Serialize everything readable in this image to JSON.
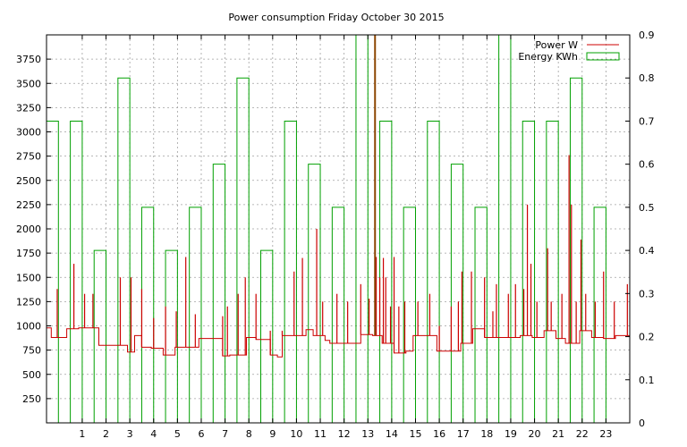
{
  "chart_data": {
    "type": "line",
    "title": "Power consumption Friday October 30 2015",
    "xlabel": "",
    "ylabel": "",
    "grid": true,
    "legend_position": "top-right",
    "x_axis": {
      "range": [
        -0.5,
        24
      ],
      "ticks": [
        "1",
        "2",
        "3",
        "4",
        "5",
        "6",
        "7",
        "8",
        "9",
        "10",
        "11",
        "12",
        "13",
        "14",
        "15",
        "16",
        "17",
        "18",
        "19",
        "20",
        "21",
        "22",
        "23"
      ]
    },
    "y_left": {
      "range": [
        0,
        4000
      ],
      "ticks": [
        "250",
        "500",
        "750",
        "1000",
        "1250",
        "1500",
        "1750",
        "2000",
        "2250",
        "2500",
        "2750",
        "3000",
        "3250",
        "3500",
        "3750"
      ]
    },
    "y_right": {
      "range": [
        0,
        0.9
      ],
      "ticks": [
        "0",
        "0.1",
        "0.2",
        "0.3",
        "0.4",
        "0.5",
        "0.6",
        "0.7",
        "0.8",
        "0.9"
      ]
    },
    "series": [
      {
        "name": "Power W",
        "axis": "left",
        "color": "#cc0000",
        "style": "line",
        "base_levels": [
          [
            -0.5,
            980
          ],
          [
            -0.3,
            880
          ],
          [
            0.2,
            880
          ],
          [
            0.35,
            970
          ],
          [
            0.85,
            980
          ],
          [
            1.3,
            980
          ],
          [
            1.7,
            800
          ],
          [
            2.1,
            800
          ],
          [
            2.5,
            800
          ],
          [
            2.9,
            730
          ],
          [
            3.2,
            900
          ],
          [
            3.5,
            780
          ],
          [
            3.9,
            770
          ],
          [
            4.4,
            700
          ],
          [
            4.9,
            780
          ],
          [
            5.4,
            780
          ],
          [
            5.9,
            870
          ],
          [
            6.4,
            870
          ],
          [
            6.9,
            690
          ],
          [
            7.2,
            700
          ],
          [
            7.4,
            700
          ],
          [
            7.9,
            880
          ],
          [
            8.3,
            860
          ],
          [
            8.9,
            700
          ],
          [
            9.2,
            680
          ],
          [
            9.4,
            900
          ],
          [
            9.9,
            900
          ],
          [
            10.4,
            960
          ],
          [
            10.7,
            900
          ],
          [
            11.2,
            850
          ],
          [
            11.4,
            820
          ],
          [
            11.9,
            820
          ],
          [
            12.4,
            820
          ],
          [
            12.7,
            910
          ],
          [
            13.2,
            900
          ],
          [
            13.6,
            820
          ],
          [
            14.1,
            720
          ],
          [
            14.6,
            740
          ],
          [
            14.9,
            900
          ],
          [
            15.4,
            900
          ],
          [
            15.9,
            740
          ],
          [
            16.4,
            740
          ],
          [
            16.9,
            820
          ],
          [
            17.4,
            970
          ],
          [
            17.9,
            880
          ],
          [
            18.3,
            880
          ],
          [
            18.9,
            880
          ],
          [
            19.4,
            900
          ],
          [
            19.9,
            880
          ],
          [
            20.4,
            950
          ],
          [
            20.9,
            870
          ],
          [
            21.3,
            820
          ],
          [
            21.9,
            950
          ],
          [
            22.4,
            880
          ],
          [
            22.9,
            870
          ],
          [
            23.4,
            900
          ],
          [
            24.0,
            900
          ]
        ],
        "spikes": [
          [
            -0.05,
            1380
          ],
          [
            0.65,
            1640
          ],
          [
            1.1,
            1330
          ],
          [
            1.45,
            1330
          ],
          [
            2.6,
            1500
          ],
          [
            3.05,
            1500
          ],
          [
            3.5,
            1380
          ],
          [
            4.0,
            1080
          ],
          [
            4.5,
            1200
          ],
          [
            4.95,
            1150
          ],
          [
            5.35,
            1710
          ],
          [
            5.75,
            1120
          ],
          [
            6.9,
            1100
          ],
          [
            7.1,
            1200
          ],
          [
            7.55,
            1330
          ],
          [
            7.85,
            1500
          ],
          [
            8.3,
            1330
          ],
          [
            8.9,
            950
          ],
          [
            9.4,
            950
          ],
          [
            9.9,
            1560
          ],
          [
            10.25,
            1700
          ],
          [
            10.85,
            2000
          ],
          [
            11.1,
            1250
          ],
          [
            11.7,
            1330
          ],
          [
            12.15,
            1250
          ],
          [
            12.7,
            1430
          ],
          [
            13.05,
            1280
          ],
          [
            13.35,
            1710
          ],
          [
            13.5,
            1500
          ],
          [
            13.65,
            1700
          ],
          [
            13.75,
            1500
          ],
          [
            13.95,
            1200
          ],
          [
            14.1,
            1710
          ],
          [
            14.3,
            1200
          ],
          [
            14.55,
            1250
          ],
          [
            15.1,
            1250
          ],
          [
            15.6,
            1330
          ],
          [
            16.0,
            1000
          ],
          [
            16.5,
            1200
          ],
          [
            16.8,
            1250
          ],
          [
            16.95,
            1560
          ],
          [
            17.35,
            1560
          ],
          [
            17.9,
            1500
          ],
          [
            18.25,
            1150
          ],
          [
            18.4,
            1430
          ],
          [
            18.9,
            1330
          ],
          [
            19.2,
            1430
          ],
          [
            19.55,
            1380
          ],
          [
            19.7,
            2250
          ],
          [
            19.85,
            1640
          ],
          [
            20.1,
            1250
          ],
          [
            20.55,
            1800
          ],
          [
            20.7,
            1250
          ],
          [
            21.15,
            1330
          ],
          [
            21.45,
            2760
          ],
          [
            21.55,
            2250
          ],
          [
            21.75,
            1250
          ],
          [
            21.95,
            1890
          ],
          [
            22.15,
            1330
          ],
          [
            22.55,
            1250
          ],
          [
            22.9,
            1560
          ],
          [
            23.35,
            1250
          ],
          [
            23.9,
            1430
          ]
        ],
        "big_spike": [
          13.3,
          4000
        ]
      },
      {
        "name": "Energy KWh",
        "axis": "right",
        "color": "#00a000",
        "style": "steps",
        "hours": [
          0,
          1,
          2,
          3,
          4,
          5,
          6,
          7,
          8,
          9,
          10,
          11,
          12,
          13,
          14,
          15,
          16,
          17,
          18,
          19,
          20,
          21,
          22,
          23
        ],
        "values": [
          0.7,
          0.7,
          0.4,
          0.8,
          0.5,
          0.4,
          0.5,
          0.6,
          0.8,
          0.4,
          0.7,
          0.6,
          0.5,
          0.9,
          0.7,
          0.5,
          0.7,
          0.6,
          0.5,
          0.9,
          0.7,
          0.7,
          0.8,
          0.5
        ]
      }
    ]
  }
}
